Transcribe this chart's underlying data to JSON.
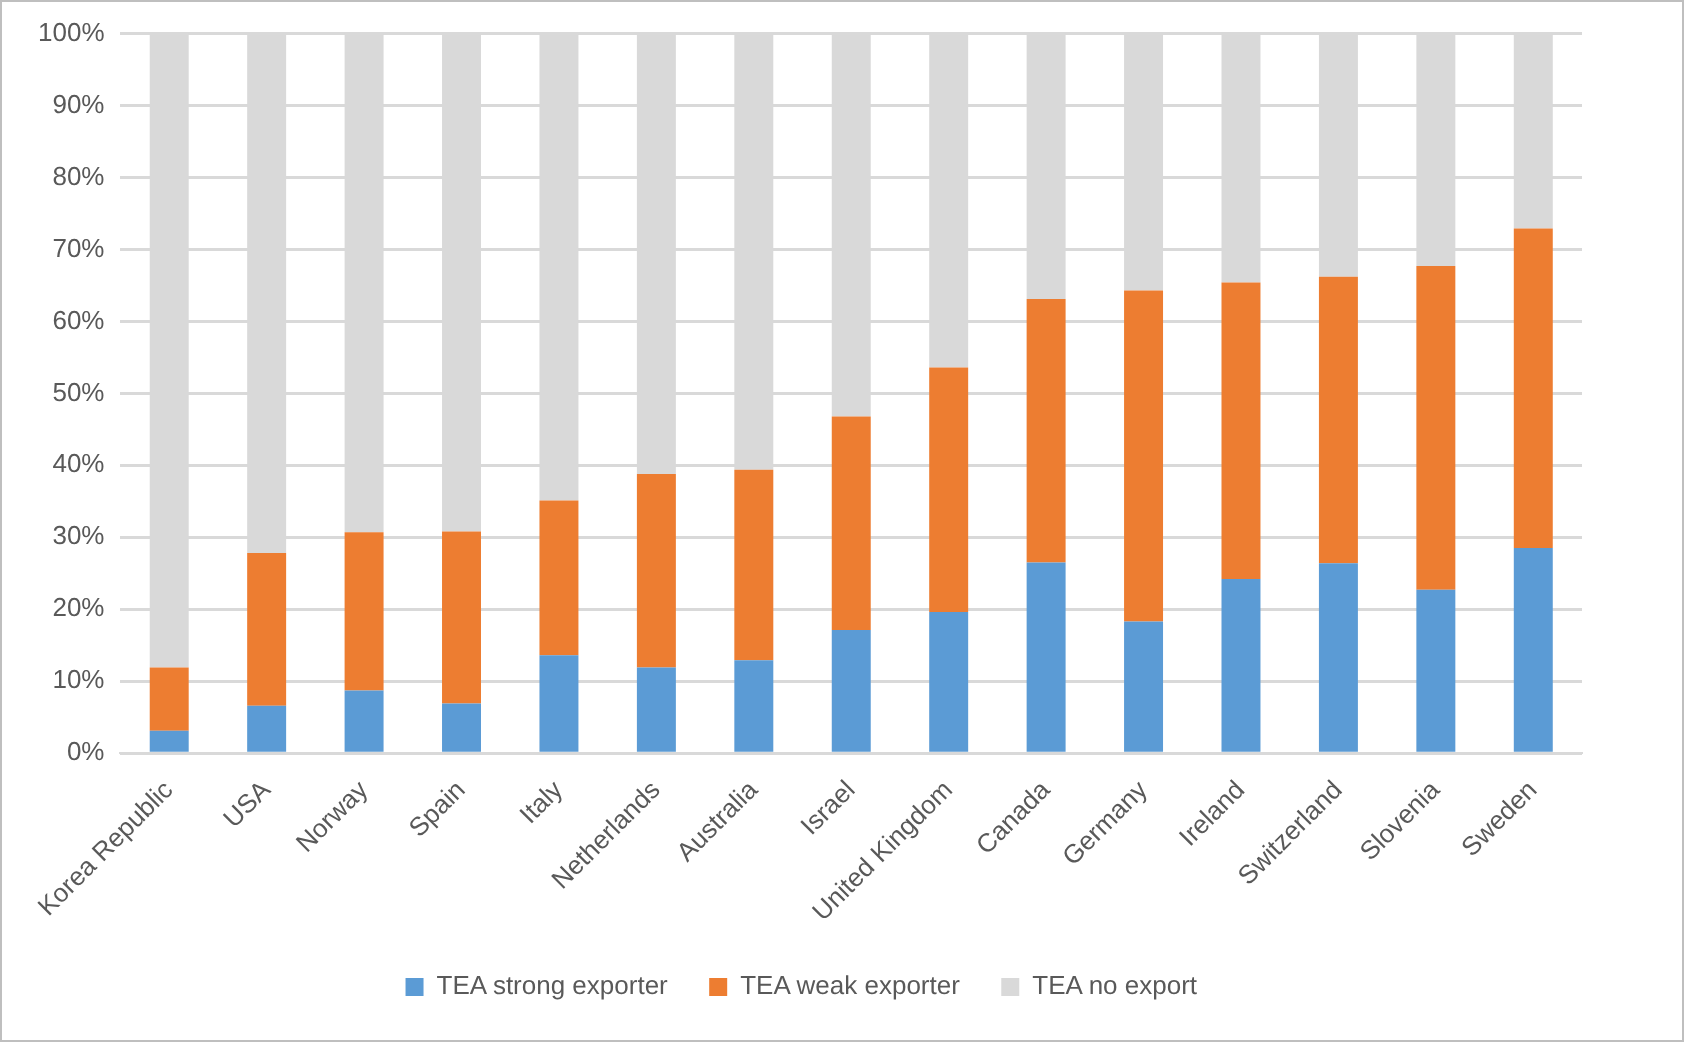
{
  "chart_data": {
    "type": "bar",
    "stacked": true,
    "categories": [
      "Korea Republic",
      "USA",
      "Norway",
      "Spain",
      "Italy",
      "Netherlands",
      "Australia",
      "Israel",
      "United Kingdom",
      "Canada",
      "Germany",
      "Ireland",
      "Switzerland",
      "Slovenia",
      "Sweden"
    ],
    "series": [
      {
        "name": "TEA strong exporter",
        "color": "#5b9bd5",
        "values": [
          3.1,
          6.6,
          8.7,
          6.9,
          13.6,
          11.9,
          12.9,
          17.1,
          19.6,
          26.5,
          18.3,
          24.2,
          26.4,
          22.7,
          28.5
        ]
      },
      {
        "name": "TEA weak exporter",
        "color": "#ed7d31",
        "values": [
          8.8,
          21.2,
          22.0,
          23.9,
          21.5,
          26.9,
          26.5,
          29.7,
          34.0,
          36.6,
          46.0,
          41.2,
          39.8,
          45.0,
          44.4
        ]
      },
      {
        "name": "TEA no export",
        "color": "#d9d9d9",
        "values": [
          88.1,
          72.2,
          69.3,
          69.2,
          64.9,
          61.2,
          60.6,
          53.2,
          46.4,
          36.9,
          35.7,
          34.6,
          33.8,
          32.3,
          27.1
        ]
      }
    ],
    "ylim": [
      0,
      100
    ],
    "yticks": [
      {
        "value": 0,
        "label": "0%"
      },
      {
        "value": 10,
        "label": "10%"
      },
      {
        "value": 20,
        "label": "20%"
      },
      {
        "value": 30,
        "label": "30%"
      },
      {
        "value": 40,
        "label": "40%"
      },
      {
        "value": 50,
        "label": "50%"
      },
      {
        "value": 60,
        "label": "60%"
      },
      {
        "value": 70,
        "label": "70%"
      },
      {
        "value": 80,
        "label": "80%"
      },
      {
        "value": 90,
        "label": "90%"
      },
      {
        "value": 100,
        "label": "100%"
      }
    ],
    "grid": "y",
    "legend": "bottom"
  }
}
